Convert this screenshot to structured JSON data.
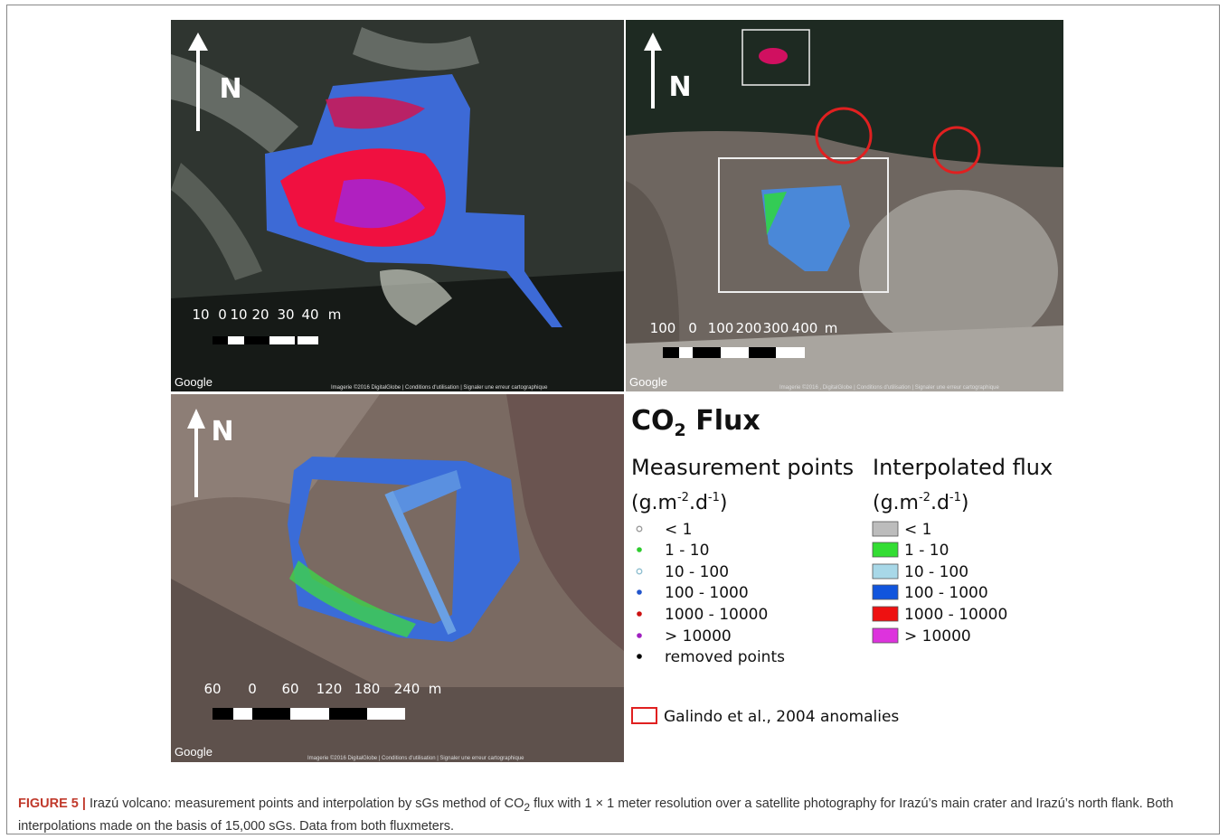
{
  "panels": [
    {
      "north": "N",
      "scale_labels": [
        "10",
        "0",
        "10",
        "20",
        "30",
        "40"
      ],
      "scale_unit": "m",
      "credit": "Google",
      "attribution": "Imagerie ©2016 DigitalGlobe | Conditions d'utilisation | Signaler une erreur cartographique"
    },
    {
      "north": "N",
      "scale_labels": [
        "100",
        "0",
        "100",
        "200",
        "300",
        "400"
      ],
      "scale_unit": "m",
      "credit": "Google",
      "attribution": "Imagerie ©2016 , DigitalGlobe | Conditions d'utilisation | Signaler une erreur cartographique"
    },
    {
      "north": "N",
      "scale_labels": [
        "60",
        "0",
        "60",
        "120",
        "180",
        "240"
      ],
      "scale_unit": "m",
      "credit": "Google",
      "attribution": "Imagerie ©2016 DigitalGlobe | Conditions d'utilisation | Signaler une erreur cartographique"
    }
  ],
  "legend": {
    "title": {
      "text": "CO",
      "sub": "2",
      "rest": " Flux"
    },
    "points": {
      "heading": "Measurement points",
      "unit": {
        "a": "(g.m",
        "b": "-2",
        "c": ".d",
        "d": "-1",
        "e": ")"
      },
      "items": [
        {
          "label": "< 1",
          "color": "#9a9a9a"
        },
        {
          "label": "1 - 10",
          "color": "#2ecc2e"
        },
        {
          "label": "10 - 100",
          "color": "#8fbfd0"
        },
        {
          "label": "100 - 1000",
          "color": "#2255cc"
        },
        {
          "label": "1000 - 10000",
          "color": "#cc1111"
        },
        {
          "label": "> 10000",
          "color": "#a020c0"
        },
        {
          "label": "removed points",
          "color": "#000000"
        }
      ]
    },
    "interpolated": {
      "heading": "Interpolated flux",
      "unit": {
        "a": "(g.m",
        "b": "-2",
        "c": ".d",
        "d": "-1",
        "e": ")"
      },
      "items": [
        {
          "label": "< 1",
          "color": "#bcbcbc"
        },
        {
          "label": "1 - 10",
          "color": "#33dd33"
        },
        {
          "label": "10 - 100",
          "color": "#a8d8e8"
        },
        {
          "label": "100 - 1000",
          "color": "#1155dd"
        },
        {
          "label": "1000 - 10000",
          "color": "#ee1111"
        },
        {
          "label": "> 10000",
          "color": "#dd33dd"
        }
      ]
    },
    "anomaly": {
      "label": "Galindo et al., 2004 anomalies",
      "color": "#e02020"
    }
  },
  "caption": {
    "label": "FIGURE 5 |",
    "text_1": " Irazú volcano: measurement points and interpolation by sGs method of CO",
    "sub": "2",
    "text_2": " flux with 1 × 1 meter resolution over a satellite photography for Irazú’s main crater and Irazú’s north flank. Both interpolations made on the basis of 15,000 sGs. Data from both fluxmeters."
  }
}
